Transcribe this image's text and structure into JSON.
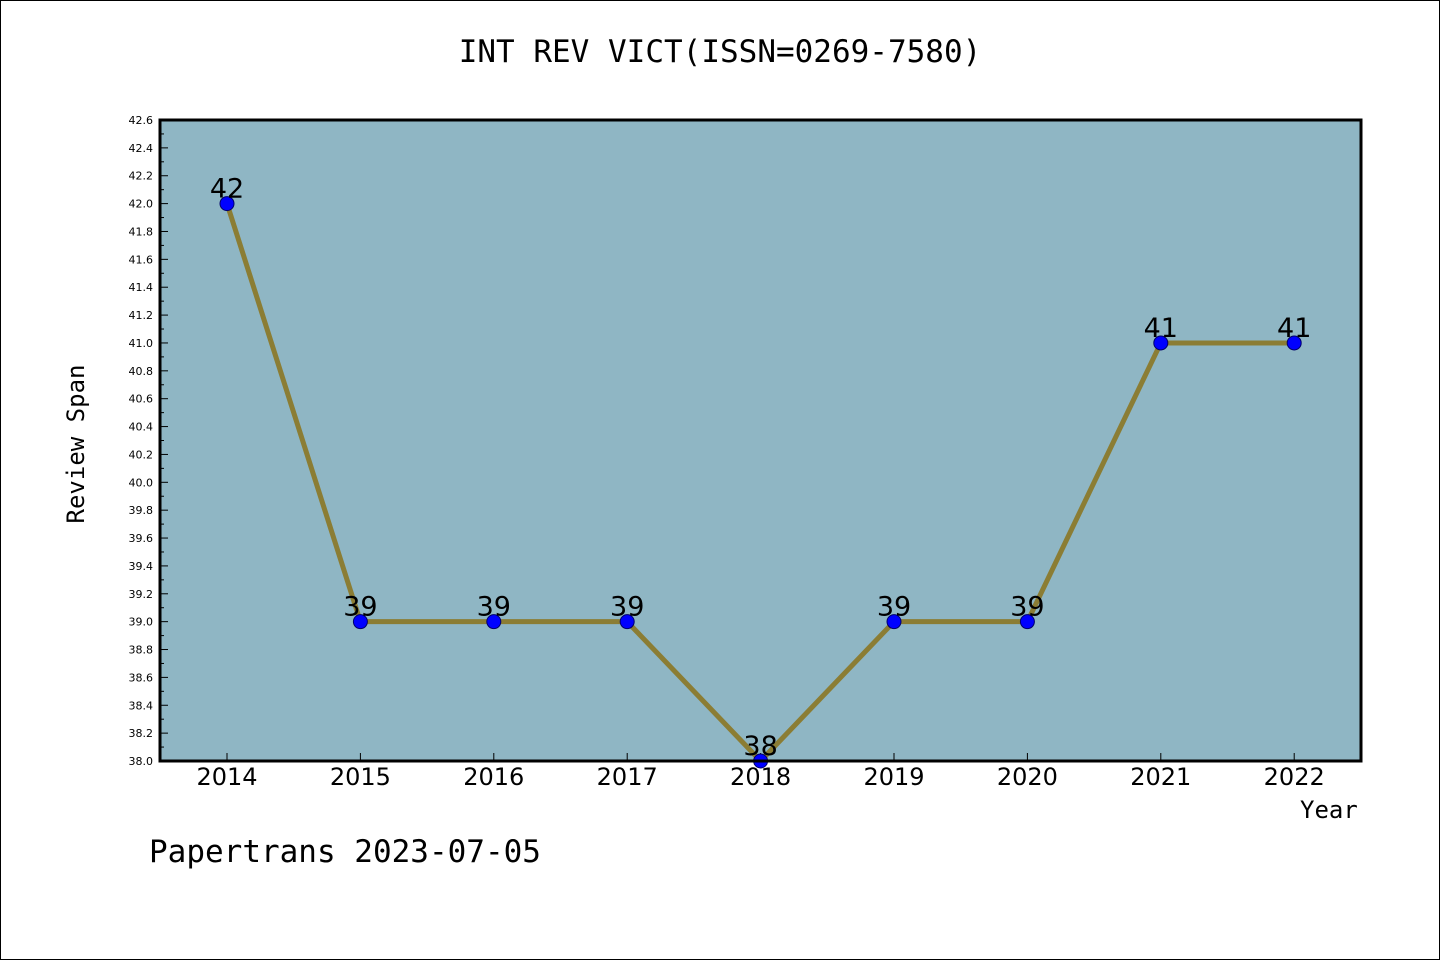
{
  "chart_data": {
    "type": "line",
    "title": "INT REV VICT(ISSN=0269-7580)",
    "xlabel": "Year",
    "ylabel": "Review Span",
    "footer": "Papertrans 2023-07-05",
    "x": [
      "2014",
      "2015",
      "2016",
      "2017",
      "2018",
      "2019",
      "2020",
      "2021",
      "2022"
    ],
    "values": [
      42,
      39,
      39,
      39,
      38,
      39,
      39,
      41,
      41
    ],
    "data_labels": [
      "42",
      "39",
      "39",
      "39",
      "38",
      "39",
      "39",
      "41",
      "41"
    ],
    "ylim": [
      38.0,
      42.6
    ],
    "yticks": [
      "38.0",
      "38.2",
      "38.4",
      "38.6",
      "38.8",
      "39.0",
      "39.2",
      "39.4",
      "39.6",
      "39.8",
      "40.0",
      "40.2",
      "40.4",
      "40.6",
      "40.8",
      "41.0",
      "41.2",
      "41.4",
      "41.6",
      "41.8",
      "42.0",
      "42.2",
      "42.4",
      "42.6"
    ],
    "grid": false,
    "colors": {
      "plot_background": "#8fb6c4",
      "line": "#8b7d34",
      "marker": "#0000ff"
    }
  }
}
